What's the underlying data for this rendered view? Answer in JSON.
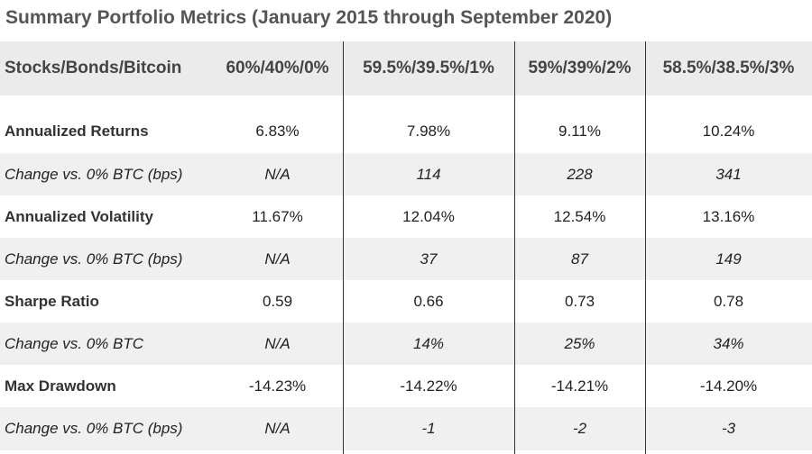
{
  "title": "Summary Portfolio Metrics (January 2015 through September 2020)",
  "header": [
    "Stocks/Bonds/Bitcoin",
    "60%/40%/0%",
    "59.5%/39.5%/1%",
    "59%/39%/2%",
    "58.5%/38.5%/3%"
  ],
  "rows": [
    {
      "label": "Annualized Returns",
      "values": [
        "6.83%",
        "7.98%",
        "9.11%",
        "10.24%"
      ]
    },
    {
      "label": "Change vs. 0% BTC (bps)",
      "values": [
        "N/A",
        "114",
        "228",
        "341"
      ]
    },
    {
      "label": "Annualized Volatility",
      "values": [
        "11.67%",
        "12.04%",
        "12.54%",
        "13.16%"
      ]
    },
    {
      "label": "Change vs. 0% BTC (bps)",
      "values": [
        "N/A",
        "37",
        "87",
        "149"
      ]
    },
    {
      "label": "Sharpe Ratio",
      "values": [
        "0.59",
        "0.66",
        "0.73",
        "0.78"
      ]
    },
    {
      "label": "Change vs. 0% BTC",
      "values": [
        "N/A",
        "14%",
        "25%",
        "34%"
      ]
    },
    {
      "label": "Max Drawdown",
      "values": [
        "-14.23%",
        "-14.22%",
        "-14.21%",
        "-14.20%"
      ]
    },
    {
      "label": "Change vs. 0% BTC (bps)",
      "values": [
        "N/A",
        "-1",
        "-2",
        "-3"
      ]
    }
  ]
}
